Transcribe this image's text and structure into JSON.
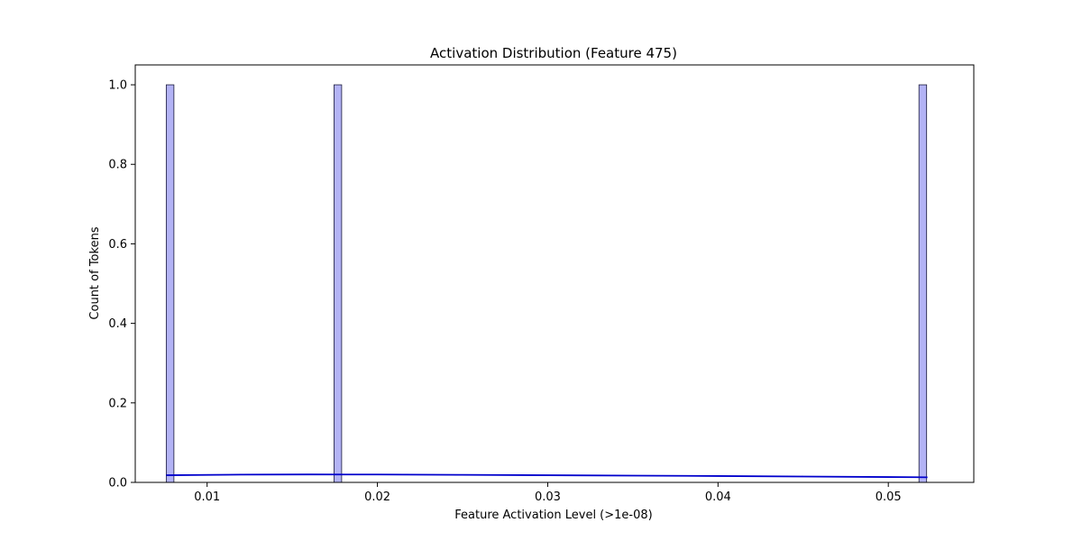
{
  "chart_data": {
    "type": "bar",
    "title": "Activation Distribution (Feature 475)",
    "xlabel": "Feature Activation Level (>1e-08)",
    "ylabel": "Count of Tokens",
    "xlim": [
      0.00578,
      0.05502
    ],
    "ylim": [
      0,
      1.05
    ],
    "x_ticks": [
      0.01,
      0.02,
      0.03,
      0.04,
      0.05
    ],
    "y_ticks": [
      0.0,
      0.2,
      0.4,
      0.6,
      0.8,
      1.0
    ],
    "bin_width": 0.00045,
    "bars": [
      {
        "x_start": 0.0076,
        "count": 1
      },
      {
        "x_start": 0.01745,
        "count": 1
      },
      {
        "x_start": 0.0518,
        "count": 1
      }
    ],
    "kde_line": {
      "x": [
        0.0076,
        0.012,
        0.016,
        0.02,
        0.025,
        0.03,
        0.035,
        0.04,
        0.045,
        0.05,
        0.0523
      ],
      "y": [
        0.018,
        0.0195,
        0.02,
        0.0198,
        0.019,
        0.018,
        0.017,
        0.016,
        0.0148,
        0.0135,
        0.0128
      ]
    },
    "bar_fill": "#b3b3f5",
    "bar_edge": "#1a1a3a",
    "line_color": "#0000cc",
    "grid": false
  }
}
